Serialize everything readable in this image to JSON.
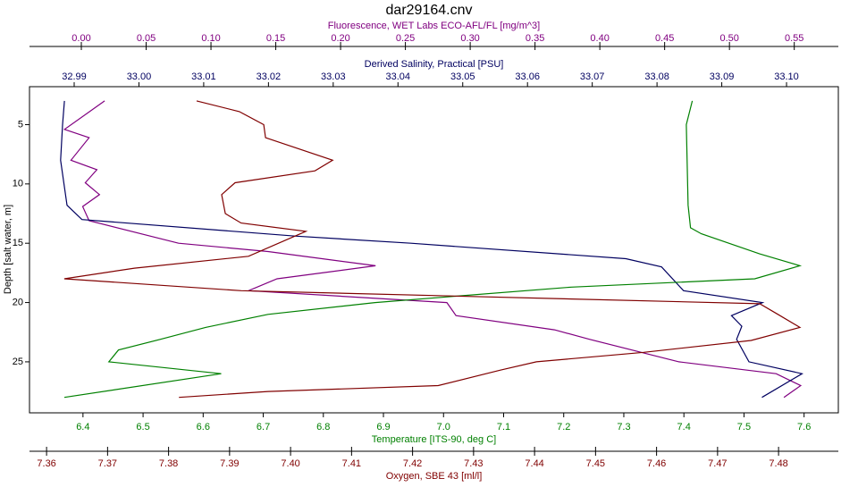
{
  "chart_data": {
    "type": "line",
    "title": "dar29164.cnv",
    "ylabel": "Depth [salt water, m]",
    "ylim": [
      1.8,
      29.3
    ],
    "y_inverted": true,
    "yticks": [
      5,
      10,
      15,
      20,
      25
    ],
    "series": [
      {
        "name": "Fluorescence, WET Labs ECO-AFL/FL [mg/m^3]",
        "color": "#800080",
        "xlim": [
          -0.04,
          0.584
        ],
        "xticks": [
          {
            "value": 0,
            "label": "0.00"
          },
          0.05,
          {
            "value": 0.1,
            "label": "0.10"
          },
          0.15,
          {
            "value": 0.2,
            "label": "0.20"
          },
          0.25,
          {
            "value": 0.3,
            "label": "0.30"
          },
          0.35,
          {
            "value": 0.4,
            "label": "0.40"
          },
          0.45,
          {
            "value": 0.5,
            "label": "0.50"
          },
          0.55
        ],
        "x": [
          0.018,
          -0.013,
          0.006,
          -0.008,
          0.012,
          0.003,
          0.014,
          0.001,
          0.006,
          0.075,
          0.144,
          0.227,
          0.151,
          0.129,
          0.282,
          0.289,
          0.365,
          0.392,
          0.461,
          0.536,
          0.555,
          0.542
        ],
        "y": [
          3.0,
          5.4,
          6.1,
          8.0,
          8.8,
          9.9,
          10.9,
          11.9,
          13.1,
          15.0,
          15.7,
          16.9,
          18.0,
          19.0,
          20.0,
          21.1,
          22.3,
          23.1,
          25.0,
          26.0,
          27.0,
          28.0
        ]
      },
      {
        "name": "Derived Salinity, Practical [PSU]",
        "color": "#000060",
        "xlim": [
          32.9831,
          33.108
        ],
        "xticks": [
          32.99,
          {
            "value": 33,
            "label": "33.00"
          },
          33.01,
          33.02,
          33.03,
          33.04,
          33.05,
          33.06,
          33.07,
          33.08,
          33.09,
          {
            "value": 33.1,
            "label": "33.10"
          }
        ],
        "x": [
          32.9885,
          32.9882,
          32.9879,
          32.9889,
          32.9912,
          33.0241,
          33.042,
          33.0752,
          33.0807,
          33.0841,
          33.0963,
          33.0915,
          33.0931,
          33.0923,
          33.0942,
          33.1024,
          33.0962
        ],
        "y": [
          3.0,
          5.0,
          8.0,
          11.8,
          13.0,
          14.4,
          15.0,
          16.3,
          17.0,
          19.0,
          20.0,
          21.1,
          22.0,
          23.1,
          25.0,
          26.0,
          28.0
        ]
      },
      {
        "name": "Temperature [ITS-90, deg C]",
        "color": "#008000",
        "xlim": [
          6.311,
          7.657
        ],
        "xticks": [
          6.4,
          6.5,
          6.6,
          6.7,
          6.8,
          6.9,
          {
            "value": 7,
            "label": "7.0"
          },
          7.1,
          7.2,
          7.3,
          7.4,
          7.5,
          7.6
        ],
        "x": [
          7.414,
          7.404,
          7.407,
          7.411,
          7.429,
          7.526,
          7.593,
          7.518,
          7.213,
          6.886,
          6.708,
          6.604,
          6.529,
          6.459,
          6.443,
          6.63,
          6.369
        ],
        "y": [
          3.0,
          5.0,
          11.8,
          13.7,
          14.2,
          15.9,
          16.9,
          18.0,
          18.7,
          20.0,
          21.0,
          22.1,
          23.1,
          24.0,
          25.0,
          26.0,
          28.0
        ]
      },
      {
        "name": "Oxygen, SBE 43 [ml/l]",
        "color": "#800000",
        "xlim": [
          7.3572,
          7.4898
        ],
        "xticks": [
          7.36,
          7.37,
          7.38,
          7.39,
          {
            "value": 7.4,
            "label": "7.40"
          },
          7.41,
          7.42,
          7.43,
          7.44,
          7.45,
          7.46,
          7.47,
          7.48
        ],
        "x": [
          7.3846,
          7.3916,
          7.3956,
          7.3959,
          7.4069,
          7.404,
          7.3909,
          7.3887,
          7.3893,
          7.3919,
          7.4025,
          7.3931,
          7.3744,
          7.3629,
          7.3919,
          7.4769,
          7.4799,
          7.4835,
          7.4755,
          7.4579,
          7.4403,
          7.4344,
          7.4242,
          7.3963,
          7.3817
        ],
        "y": [
          3.0,
          3.9,
          5.0,
          6.1,
          8.0,
          8.9,
          9.9,
          10.9,
          12.5,
          13.3,
          14.0,
          16.1,
          17.1,
          18.0,
          19.0,
          20.1,
          21.0,
          22.1,
          23.2,
          24.2,
          25.0,
          25.7,
          27.0,
          27.5,
          28.0
        ]
      }
    ]
  }
}
